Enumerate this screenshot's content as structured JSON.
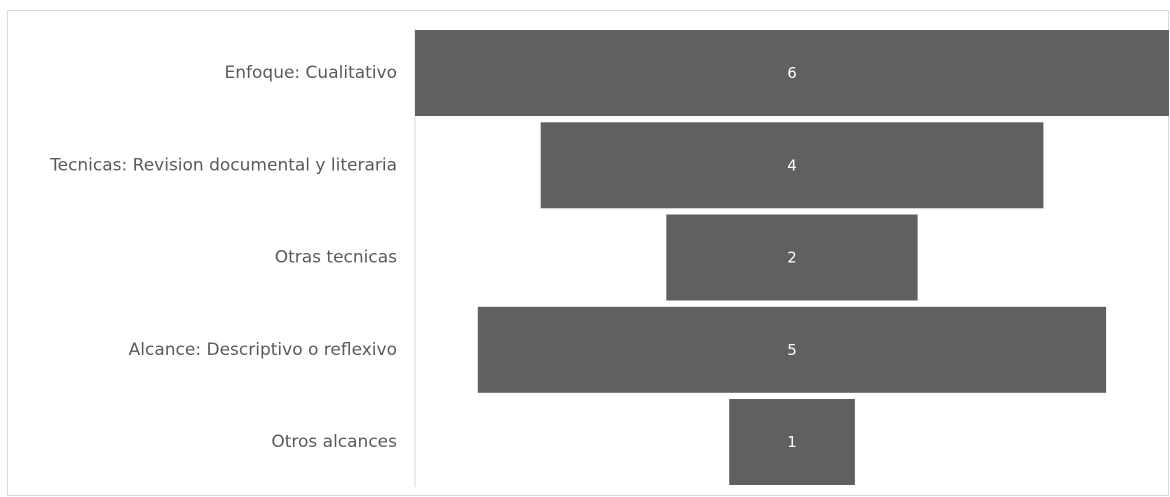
{
  "chart_data": {
    "type": "bar",
    "orientation": "horizontal-centered-funnel",
    "categories": [
      "Enfoque: Cualitativo",
      "Tecnicas: Revision documental y literaria",
      "Otras tecnicas",
      "Alcance: Descriptivo o reflexivo",
      "Otros alcances"
    ],
    "values": [
      6,
      4,
      2,
      5,
      1
    ],
    "value_labels": [
      "6",
      "4",
      "2",
      "5",
      "1"
    ],
    "xlim": [
      0,
      6
    ],
    "grid": false,
    "legend": "none",
    "colors": {
      "bar": "#606060",
      "label_text": "#595959",
      "value_text": "#ffffff",
      "axis_line": "#d9d9d9",
      "frame": "#d9d9d9"
    }
  }
}
